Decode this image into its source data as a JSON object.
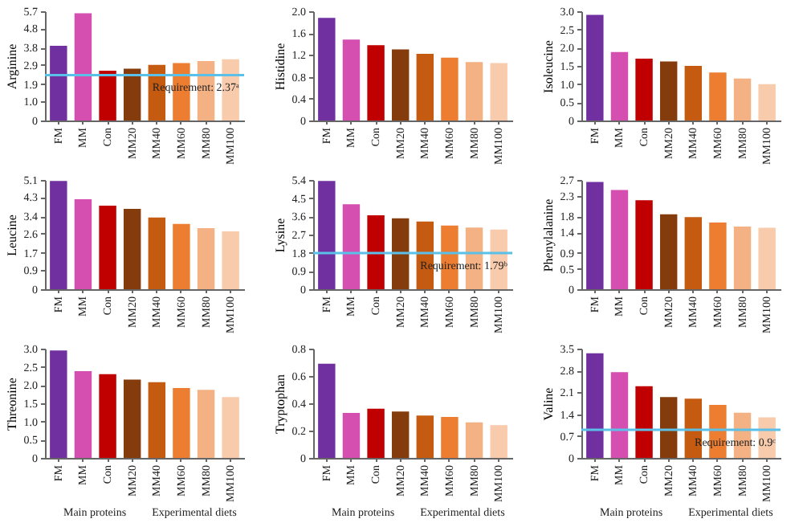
{
  "chart_data": [
    {
      "type": "bar",
      "ylabel": "Arginine",
      "categories": [
        "FM",
        "MM",
        "Con",
        "MM20",
        "MM40",
        "MM60",
        "MM80",
        "MM100"
      ],
      "colors": [
        "#7030a0",
        "#d44fb0",
        "#c00000",
        "#843c0c",
        "#c55a11",
        "#ed7d31",
        "#f4b183",
        "#f8cbad"
      ],
      "values": [
        3.9,
        5.6,
        2.6,
        2.7,
        2.9,
        3.0,
        3.1,
        3.2
      ],
      "ylim": [
        0,
        5.7
      ],
      "yticks": [
        0,
        {
          "value": 1,
          "label": "1.0"
        },
        1.9,
        2.9,
        3.8,
        4.8,
        5.7
      ],
      "ref_lines": [
        {
          "axis": "y",
          "value": 2.37,
          "label": "Requirement: 2.37ᵃ",
          "color": "#5bc0e8"
        }
      ]
    },
    {
      "type": "bar",
      "ylabel": "Histidine",
      "categories": [
        "FM",
        "MM",
        "Con",
        "MM20",
        "MM40",
        "MM60",
        "MM80",
        "MM100"
      ],
      "colors": [
        "#7030a0",
        "#d44fb0",
        "#c00000",
        "#843c0c",
        "#c55a11",
        "#ed7d31",
        "#f4b183",
        "#f8cbad"
      ],
      "values": [
        1.88,
        1.48,
        1.38,
        1.3,
        1.22,
        1.15,
        1.07,
        1.05
      ],
      "ylim": [
        0,
        2
      ],
      "yticks": [
        0,
        0.4,
        0.8,
        1.2,
        1.6,
        {
          "value": 2,
          "label": "2.0"
        }
      ]
    },
    {
      "type": "bar",
      "ylabel": "Isoleucine",
      "categories": [
        "FM",
        "MM",
        "Con",
        "MM20",
        "MM40",
        "MM60",
        "MM80",
        "MM100"
      ],
      "colors": [
        "#7030a0",
        "#d44fb0",
        "#c00000",
        "#843c0c",
        "#c55a11",
        "#ed7d31",
        "#f4b183",
        "#f8cbad"
      ],
      "values": [
        2.9,
        1.88,
        1.7,
        1.62,
        1.5,
        1.32,
        1.15,
        1.0
      ],
      "ylim": [
        0,
        3
      ],
      "yticks": [
        0,
        0.5,
        {
          "value": 1,
          "label": "1.0"
        },
        1.5,
        {
          "value": 2,
          "label": "2.0"
        },
        2.5,
        {
          "value": 3,
          "label": "3.0"
        }
      ]
    },
    {
      "type": "bar",
      "ylabel": "Leucine",
      "categories": [
        "FM",
        "MM",
        "Con",
        "MM20",
        "MM40",
        "MM60",
        "MM80",
        "MM100"
      ],
      "colors": [
        "#7030a0",
        "#d44fb0",
        "#c00000",
        "#843c0c",
        "#c55a11",
        "#ed7d31",
        "#f4b183",
        "#f8cbad"
      ],
      "values": [
        5.05,
        4.2,
        3.9,
        3.75,
        3.35,
        3.05,
        2.85,
        2.7
      ],
      "ylim": [
        0,
        5.1
      ],
      "yticks": [
        0,
        0.9,
        1.7,
        2.6,
        3.4,
        4.3,
        5.1
      ]
    },
    {
      "type": "bar",
      "ylabel": "Lysine",
      "categories": [
        "FM",
        "MM",
        "Con",
        "MM20",
        "MM40",
        "MM60",
        "MM80",
        "MM100"
      ],
      "colors": [
        "#7030a0",
        "#d44fb0",
        "#c00000",
        "#843c0c",
        "#c55a11",
        "#ed7d31",
        "#f4b183",
        "#f8cbad"
      ],
      "values": [
        5.35,
        4.2,
        3.65,
        3.5,
        3.35,
        3.15,
        3.05,
        2.95
      ],
      "ylim": [
        0,
        5.4
      ],
      "yticks": [
        0,
        0.9,
        1.8,
        2.7,
        3.6,
        4.5,
        5.4
      ],
      "ref_lines": [
        {
          "axis": "y",
          "value": 1.79,
          "label": "Requirement: 1.79ᵇ",
          "color": "#5bc0e8"
        }
      ]
    },
    {
      "type": "bar",
      "ylabel": "Phenylalanine",
      "categories": [
        "FM",
        "MM",
        "Con",
        "MM20",
        "MM40",
        "MM60",
        "MM80",
        "MM100"
      ],
      "colors": [
        "#7030a0",
        "#d44fb0",
        "#c00000",
        "#843c0c",
        "#c55a11",
        "#ed7d31",
        "#f4b183",
        "#f8cbad"
      ],
      "values": [
        2.65,
        2.45,
        2.2,
        1.85,
        1.78,
        1.65,
        1.55,
        1.52
      ],
      "ylim": [
        0,
        2.7
      ],
      "yticks": [
        0,
        0.5,
        0.9,
        1.4,
        1.8,
        2.3,
        2.7
      ]
    },
    {
      "type": "bar",
      "ylabel": "Threonine",
      "categories": [
        "FM",
        "MM",
        "Con",
        "MM20",
        "MM40",
        "MM60",
        "MM80",
        "MM100"
      ],
      "colors": [
        "#7030a0",
        "#d44fb0",
        "#c00000",
        "#843c0c",
        "#c55a11",
        "#ed7d31",
        "#f4b183",
        "#f8cbad"
      ],
      "values": [
        2.95,
        2.38,
        2.3,
        2.15,
        2.08,
        1.92,
        1.87,
        1.67
      ],
      "ylim": [
        0,
        3
      ],
      "yticks": [
        0,
        0.5,
        {
          "value": 1,
          "label": "1.0"
        },
        1.5,
        {
          "value": 2,
          "label": "2.0"
        },
        2.5,
        {
          "value": 3,
          "label": "3.0"
        }
      ],
      "annotations": [
        "Main proteins",
        "Experimental diets"
      ]
    },
    {
      "type": "bar",
      "ylabel": "Tryptophan",
      "categories": [
        "FM",
        "MM",
        "Con",
        "MM20",
        "MM40",
        "MM60",
        "MM80",
        "MM100"
      ],
      "colors": [
        "#7030a0",
        "#d44fb0",
        "#c00000",
        "#843c0c",
        "#c55a11",
        "#ed7d31",
        "#f4b183",
        "#f8cbad"
      ],
      "values": [
        0.69,
        0.33,
        0.36,
        0.34,
        0.31,
        0.3,
        0.26,
        0.24
      ],
      "ylim": [
        0,
        0.8
      ],
      "yticks": [
        0,
        0.2,
        0.4,
        0.6,
        0.8
      ],
      "annotations": [
        "Main proteins",
        "Experimental diets"
      ]
    },
    {
      "type": "bar",
      "ylabel": "Valine",
      "categories": [
        "FM",
        "MM",
        "Con",
        "MM20",
        "MM40",
        "MM60",
        "MM80",
        "MM100"
      ],
      "colors": [
        "#7030a0",
        "#d44fb0",
        "#c00000",
        "#843c0c",
        "#c55a11",
        "#ed7d31",
        "#f4b183",
        "#f8cbad"
      ],
      "values": [
        3.35,
        2.75,
        2.3,
        1.95,
        1.9,
        1.7,
        1.45,
        1.3
      ],
      "ylim": [
        0,
        3.5
      ],
      "yticks": [
        0,
        0.7,
        1.4,
        2.1,
        2.8,
        3.5
      ],
      "ref_lines": [
        {
          "axis": "y",
          "value": 0.9,
          "label": "Requirement: 0.9ᶜ",
          "color": "#5bc0e8"
        }
      ],
      "annotations": [
        "Main proteins",
        "Experimental diets"
      ]
    }
  ]
}
